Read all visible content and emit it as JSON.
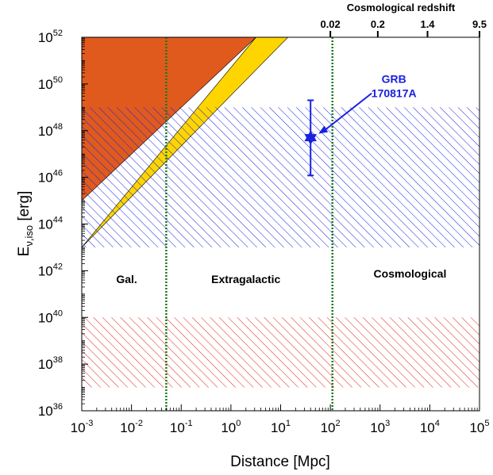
{
  "chart_data": {
    "type": "area",
    "xlabel": "Distance [Mpc]",
    "ylabel_main": "E",
    "ylabel_sub": "ν,iso",
    "ylabel_unit": " [erg]",
    "x_scale": "log",
    "y_scale": "log",
    "xlim": [
      0.001,
      100000
    ],
    "ylim": [
      1e+36,
      1e+52
    ],
    "x_ticks": [
      {
        "value": 0.001,
        "base": "10",
        "exp": "-3"
      },
      {
        "value": 0.01,
        "base": "10",
        "exp": "-2"
      },
      {
        "value": 0.1,
        "base": "10",
        "exp": "-1"
      },
      {
        "value": 1,
        "base": "10",
        "exp": "0"
      },
      {
        "value": 10,
        "base": "10",
        "exp": "1"
      },
      {
        "value": 100,
        "base": "10",
        "exp": "2"
      },
      {
        "value": 1000,
        "base": "10",
        "exp": "3"
      },
      {
        "value": 10000,
        "base": "10",
        "exp": "4"
      },
      {
        "value": 100000,
        "base": "10",
        "exp": "5"
      }
    ],
    "y_ticks": [
      {
        "value": 1e+36,
        "base": "10",
        "exp": "36"
      },
      {
        "value": 1e+38,
        "base": "10",
        "exp": "38"
      },
      {
        "value": 1e+40,
        "base": "10",
        "exp": "40"
      },
      {
        "value": 1e+42,
        "base": "10",
        "exp": "42"
      },
      {
        "value": 1e+44,
        "base": "10",
        "exp": "44"
      },
      {
        "value": 1e+46,
        "base": "10",
        "exp": "46"
      },
      {
        "value": 1e+48,
        "base": "10",
        "exp": "48"
      },
      {
        "value": 1e+50,
        "base": "10",
        "exp": "50"
      },
      {
        "value": 1e+52,
        "base": "10",
        "exp": "52"
      }
    ],
    "top_axis": {
      "label": "Cosmological redshift",
      "ticks": [
        {
          "label": "0.02",
          "distance": 100
        },
        {
          "label": "0.2",
          "distance": 900
        },
        {
          "label": "1.4",
          "distance": 9000
        },
        {
          "label": "9.5",
          "distance": 100000
        }
      ]
    },
    "regions": [
      {
        "name": "excluded-region",
        "color": "#e05a1e",
        "polygon": [
          [
            0.001,
            1e+52
          ],
          [
            3.2,
            1e+52
          ],
          [
            0.001,
            1e+45
          ]
        ]
      },
      {
        "name": "sensitivity-band",
        "color": "#ffd500",
        "polygon": [
          [
            3.2,
            1e+52
          ],
          [
            14,
            1e+52
          ],
          [
            0.001,
            1e+43
          ]
        ]
      },
      {
        "name": "energy-range-upper",
        "color": "#1a22e0",
        "hatch": true,
        "y_range": [
          1e+43,
          1e+49
        ]
      },
      {
        "name": "energy-range-lower",
        "color": "#e0201a",
        "hatch": true,
        "y_range": [
          1e+37,
          1e+40
        ]
      }
    ],
    "vertical_lines": [
      {
        "x": 0.05,
        "color": "#1a7a1a",
        "style": "dotted"
      },
      {
        "x": 110,
        "color": "#1a7a1a",
        "style": "dotted"
      }
    ],
    "region_labels": [
      {
        "text": "Gal.",
        "x": 0.008,
        "y": 3e+41
      },
      {
        "text": "Extragalactic",
        "x": 2,
        "y": 3e+41
      },
      {
        "text": "Cosmological",
        "x": 4000,
        "y": 5e+41
      }
    ],
    "point": {
      "name_line1": "GRB",
      "name_line2": "170817A",
      "x": 40,
      "y": 5e+47,
      "y_err_low": 1.2e+46,
      "y_err_high": 2e+49,
      "color": "#1a22e0"
    }
  }
}
